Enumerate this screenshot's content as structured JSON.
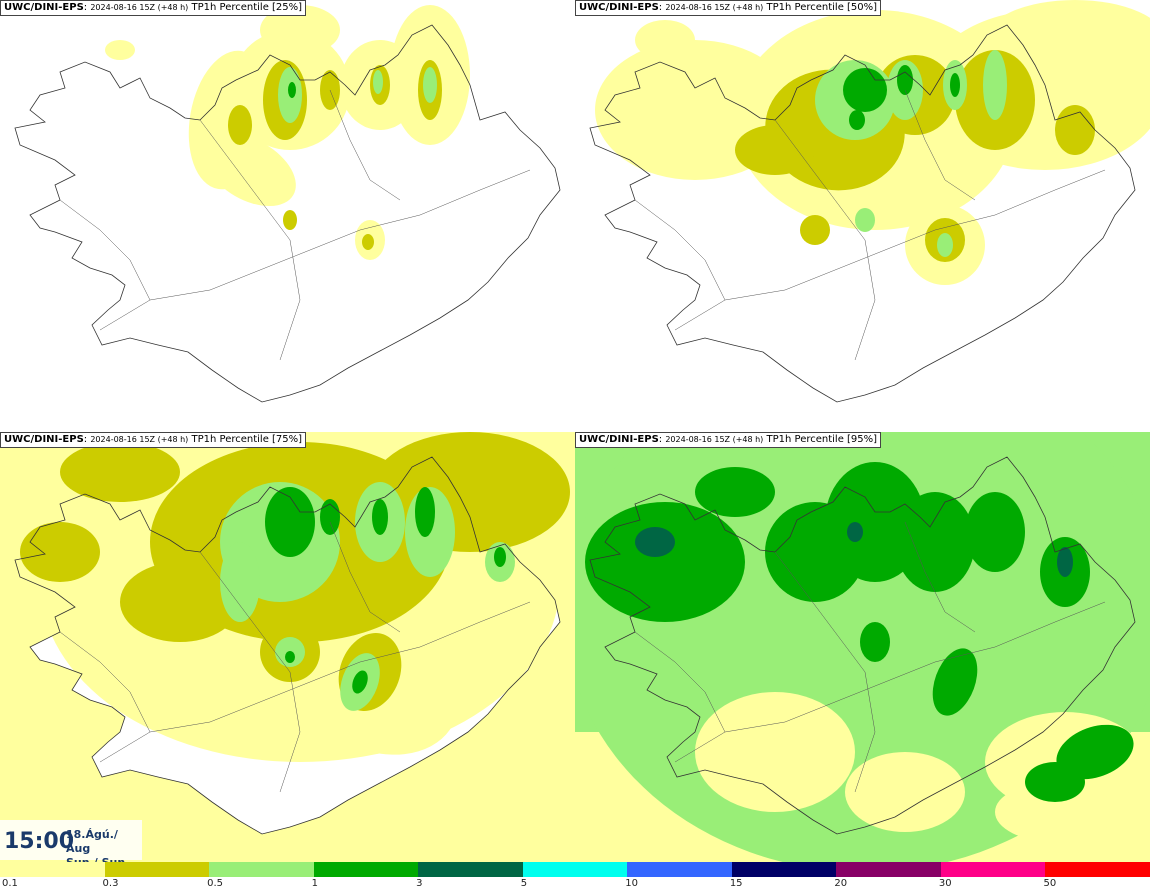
{
  "panels": [
    {
      "model": "UWC/DINI-EPS",
      "stamp": "2024-08-16 15Z (+48 h)",
      "label": "TP1h Percentile [25%]"
    },
    {
      "model": "UWC/DINI-EPS",
      "stamp": "2024-08-16 15Z (+48 h)",
      "label": "TP1h Percentile [50%]"
    },
    {
      "model": "UWC/DINI-EPS",
      "stamp": "2024-08-16 15Z (+48 h)",
      "label": "TP1h Percentile [75%]"
    },
    {
      "model": "UWC/DINI-EPS",
      "stamp": "2024-08-16 15Z (+48 h)",
      "label": "TP1h Percentile [95%]"
    }
  ],
  "valid_time": {
    "time": "15:00",
    "date_line1": "18.Ágú./ Aug",
    "date_line2": "Sun./ Sun"
  },
  "legend": {
    "colors": [
      "#ffff9e",
      "#cccc00",
      "#99ee77",
      "#00aa00",
      "#006644",
      "#00ffee",
      "#3366ff",
      "#000066",
      "#880066",
      "#ff0088",
      "#ff0000"
    ],
    "ticks": [
      "0.1",
      "0.3",
      "0.5",
      "1",
      "3",
      "5",
      "10",
      "15",
      "20",
      "30",
      "50"
    ]
  },
  "map_colors": {
    "land": "#ffffff",
    "outline": "#333333",
    "lvl1": "#ffff9e",
    "lvl2": "#cccc00",
    "lvl3": "#99ee77",
    "lvl4": "#00aa00",
    "lvl5": "#006644"
  }
}
